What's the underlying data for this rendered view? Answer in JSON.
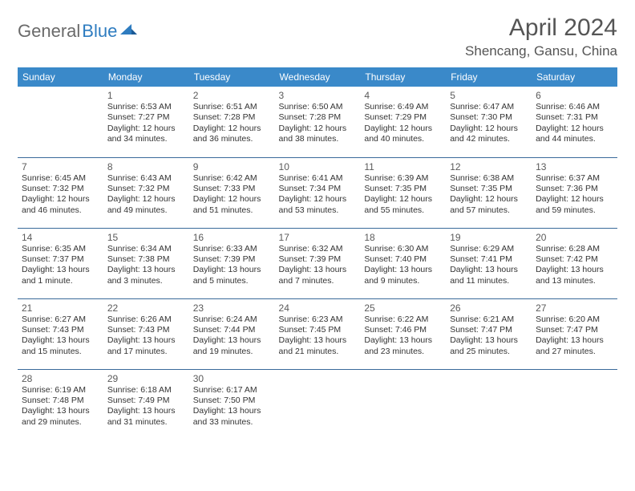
{
  "logo": {
    "general": "General",
    "blue": "Blue"
  },
  "title": "April 2024",
  "location": "Shencang, Gansu, China",
  "header_bg": "#3a89c9",
  "header_fg": "#ffffff",
  "rule_color": "#3a6a9a",
  "text_color": "#333333",
  "days_of_week": [
    "Sunday",
    "Monday",
    "Tuesday",
    "Wednesday",
    "Thursday",
    "Friday",
    "Saturday"
  ],
  "weeks": [
    [
      null,
      {
        "n": "1",
        "sr": "Sunrise: 6:53 AM",
        "ss": "Sunset: 7:27 PM",
        "dl": "Daylight: 12 hours and 34 minutes."
      },
      {
        "n": "2",
        "sr": "Sunrise: 6:51 AM",
        "ss": "Sunset: 7:28 PM",
        "dl": "Daylight: 12 hours and 36 minutes."
      },
      {
        "n": "3",
        "sr": "Sunrise: 6:50 AM",
        "ss": "Sunset: 7:28 PM",
        "dl": "Daylight: 12 hours and 38 minutes."
      },
      {
        "n": "4",
        "sr": "Sunrise: 6:49 AM",
        "ss": "Sunset: 7:29 PM",
        "dl": "Daylight: 12 hours and 40 minutes."
      },
      {
        "n": "5",
        "sr": "Sunrise: 6:47 AM",
        "ss": "Sunset: 7:30 PM",
        "dl": "Daylight: 12 hours and 42 minutes."
      },
      {
        "n": "6",
        "sr": "Sunrise: 6:46 AM",
        "ss": "Sunset: 7:31 PM",
        "dl": "Daylight: 12 hours and 44 minutes."
      }
    ],
    [
      {
        "n": "7",
        "sr": "Sunrise: 6:45 AM",
        "ss": "Sunset: 7:32 PM",
        "dl": "Daylight: 12 hours and 46 minutes."
      },
      {
        "n": "8",
        "sr": "Sunrise: 6:43 AM",
        "ss": "Sunset: 7:32 PM",
        "dl": "Daylight: 12 hours and 49 minutes."
      },
      {
        "n": "9",
        "sr": "Sunrise: 6:42 AM",
        "ss": "Sunset: 7:33 PM",
        "dl": "Daylight: 12 hours and 51 minutes."
      },
      {
        "n": "10",
        "sr": "Sunrise: 6:41 AM",
        "ss": "Sunset: 7:34 PM",
        "dl": "Daylight: 12 hours and 53 minutes."
      },
      {
        "n": "11",
        "sr": "Sunrise: 6:39 AM",
        "ss": "Sunset: 7:35 PM",
        "dl": "Daylight: 12 hours and 55 minutes."
      },
      {
        "n": "12",
        "sr": "Sunrise: 6:38 AM",
        "ss": "Sunset: 7:35 PM",
        "dl": "Daylight: 12 hours and 57 minutes."
      },
      {
        "n": "13",
        "sr": "Sunrise: 6:37 AM",
        "ss": "Sunset: 7:36 PM",
        "dl": "Daylight: 12 hours and 59 minutes."
      }
    ],
    [
      {
        "n": "14",
        "sr": "Sunrise: 6:35 AM",
        "ss": "Sunset: 7:37 PM",
        "dl": "Daylight: 13 hours and 1 minute."
      },
      {
        "n": "15",
        "sr": "Sunrise: 6:34 AM",
        "ss": "Sunset: 7:38 PM",
        "dl": "Daylight: 13 hours and 3 minutes."
      },
      {
        "n": "16",
        "sr": "Sunrise: 6:33 AM",
        "ss": "Sunset: 7:39 PM",
        "dl": "Daylight: 13 hours and 5 minutes."
      },
      {
        "n": "17",
        "sr": "Sunrise: 6:32 AM",
        "ss": "Sunset: 7:39 PM",
        "dl": "Daylight: 13 hours and 7 minutes."
      },
      {
        "n": "18",
        "sr": "Sunrise: 6:30 AM",
        "ss": "Sunset: 7:40 PM",
        "dl": "Daylight: 13 hours and 9 minutes."
      },
      {
        "n": "19",
        "sr": "Sunrise: 6:29 AM",
        "ss": "Sunset: 7:41 PM",
        "dl": "Daylight: 13 hours and 11 minutes."
      },
      {
        "n": "20",
        "sr": "Sunrise: 6:28 AM",
        "ss": "Sunset: 7:42 PM",
        "dl": "Daylight: 13 hours and 13 minutes."
      }
    ],
    [
      {
        "n": "21",
        "sr": "Sunrise: 6:27 AM",
        "ss": "Sunset: 7:43 PM",
        "dl": "Daylight: 13 hours and 15 minutes."
      },
      {
        "n": "22",
        "sr": "Sunrise: 6:26 AM",
        "ss": "Sunset: 7:43 PM",
        "dl": "Daylight: 13 hours and 17 minutes."
      },
      {
        "n": "23",
        "sr": "Sunrise: 6:24 AM",
        "ss": "Sunset: 7:44 PM",
        "dl": "Daylight: 13 hours and 19 minutes."
      },
      {
        "n": "24",
        "sr": "Sunrise: 6:23 AM",
        "ss": "Sunset: 7:45 PM",
        "dl": "Daylight: 13 hours and 21 minutes."
      },
      {
        "n": "25",
        "sr": "Sunrise: 6:22 AM",
        "ss": "Sunset: 7:46 PM",
        "dl": "Daylight: 13 hours and 23 minutes."
      },
      {
        "n": "26",
        "sr": "Sunrise: 6:21 AM",
        "ss": "Sunset: 7:47 PM",
        "dl": "Daylight: 13 hours and 25 minutes."
      },
      {
        "n": "27",
        "sr": "Sunrise: 6:20 AM",
        "ss": "Sunset: 7:47 PM",
        "dl": "Daylight: 13 hours and 27 minutes."
      }
    ],
    [
      {
        "n": "28",
        "sr": "Sunrise: 6:19 AM",
        "ss": "Sunset: 7:48 PM",
        "dl": "Daylight: 13 hours and 29 minutes."
      },
      {
        "n": "29",
        "sr": "Sunrise: 6:18 AM",
        "ss": "Sunset: 7:49 PM",
        "dl": "Daylight: 13 hours and 31 minutes."
      },
      {
        "n": "30",
        "sr": "Sunrise: 6:17 AM",
        "ss": "Sunset: 7:50 PM",
        "dl": "Daylight: 13 hours and 33 minutes."
      },
      null,
      null,
      null,
      null
    ]
  ]
}
